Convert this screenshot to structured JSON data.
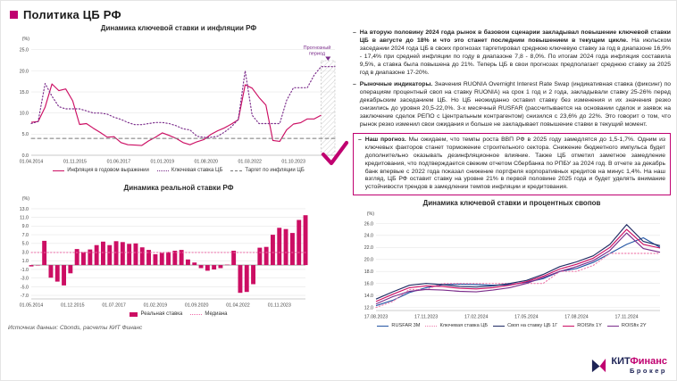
{
  "slide": {
    "title": "Политика ЦБ РФ",
    "accent_color": "#c00070",
    "navy_color": "#1e2456"
  },
  "ui": {
    "bullet_dash": "–"
  },
  "bullets": [
    {
      "lead": "На вторую половину 2024 года рынок в базовом сценарии закладывал повышение ключевой ставки ЦБ в августе до 18% и что это станет последним повышением в текущем цикле.",
      "text": "На июльском заседании 2024 года ЦБ в своих прогнозах таргетировал среднюю ключевую ставку за год в диапазоне 16,9% - 17,4% при средней инфляции по году в диапазоне 7,8 - 8,0%. По итогам 2024 года инфляция составила 9,5%, а ставка была повышена до 21%. Теперь ЦБ в свои прогнозах предполагает среднюю ставку за 2025 год в диапазоне 17-20%."
    },
    {
      "lead": "Рыночные индикаторы.",
      "text": "Значения RUONIA Overnight Interest Rate Swap (индикативная ставка (фиксинг) по операциям процентный своп на ставку RUONIA) на срок 1 год и 2 года, закладывали ставку 25-26% перед декабрьским заседанием ЦБ. Но ЦБ неожиданно оставил ставку без изменения и их значения резко снизились до уровня 20,5-22,0%. 3-х месячный RUSFAR (рассчитывается на основании сделок и заявок на заключение сделок РЕПО с Центральным контрагентом) снизился с 23,6% до 22%. Это говорит о том, что рынок резко изменил свои ожидания и больше не закладывает повышение ставки в текущий момент."
    },
    {
      "lead": "Наш прогноз.",
      "text": "Мы ожидаем, что темпы роста ВВП РФ в 2025 году замедлятся до 1,5-1,7%. Одним из ключевых факторов станет торможение строительного сектора. Снижение бюджетного импульса будет дополнительно оказывать дезинфляционное влияние. Также ЦБ отметил заметное замедление кредитования, что подтверждается свежим отчетом Сбербанка по РПБУ за 2024 год. В отчете за декабрь банк впервые с 2022 года показал снижение портфеля корпоративных кредитов на минус 1,4%. На наш взгляд, ЦБ РФ оставит ставку на уровне 21% в первой половине 2025 года и будет уделять внимание устойчивости трендов в замедлении темпов инфляции и кредитования."
    }
  ],
  "source_note": "Источник данных: Cbonds, расчеты КИТ Финанс",
  "logo": {
    "part1": "КИТ",
    "part2": "Финанс",
    "part3": "Брокер"
  },
  "chart_data": [
    {
      "type": "line",
      "title": "Динамика ключевой ставки и инфляции РФ",
      "ylabel": "(%)",
      "ylim": [
        0,
        26
      ],
      "yticks": [
        0,
        5,
        10,
        15,
        20,
        25
      ],
      "grid": true,
      "legend_position": "bottom",
      "xticklabels": [
        "01.04.2014",
        "01.11.2015",
        "01.06.2017",
        "01.01.2019",
        "01.08.2020",
        "01.03.2022",
        "01.10.2023"
      ],
      "xtick_pos": [
        0,
        6.33,
        12.67,
        19,
        25.33,
        31.67,
        38
      ],
      "x_note": "quarterly points from 2014-Q2 to 2025-Q2",
      "forecast": {
        "label": "Прогнозный период",
        "start_index": 42
      },
      "series": [
        {
          "name": "Инфляция в годовом выражении",
          "color": "#cc0e63",
          "style": "solid",
          "values": [
            7.8,
            8.0,
            11.4,
            16.9,
            15.3,
            15.7,
            12.9,
            7.3,
            7.5,
            6.4,
            5.4,
            4.3,
            4.4,
            3.0,
            2.5,
            2.4,
            2.3,
            3.4,
            4.3,
            5.3,
            4.7,
            4.0,
            3.0,
            2.5,
            3.2,
            3.7,
            4.9,
            5.8,
            6.5,
            7.4,
            8.4,
            16.7,
            15.9,
            13.7,
            11.9,
            3.5,
            3.3,
            6.0,
            7.4,
            7.7,
            8.6,
            8.6,
            9.5,
            null,
            null
          ]
        },
        {
          "name": "Ключевая ставка ЦБ",
          "color": "#7b2d8b",
          "style": "dotted",
          "values": [
            7.5,
            8.0,
            17.0,
            14.0,
            11.5,
            11.0,
            11.0,
            11.0,
            10.5,
            10.0,
            10.0,
            9.75,
            9.0,
            8.5,
            7.75,
            7.25,
            7.25,
            7.5,
            7.75,
            7.75,
            7.5,
            7.0,
            6.25,
            6.0,
            4.5,
            4.25,
            4.25,
            4.5,
            5.5,
            6.75,
            8.5,
            20.0,
            9.5,
            7.5,
            7.5,
            7.5,
            7.5,
            13.0,
            16.0,
            16.0,
            16.0,
            19.0,
            21.0,
            21.0,
            21.0
          ]
        },
        {
          "name": "Таргет по инфляции ЦБ",
          "color": "#777777",
          "style": "dashed",
          "const_value": 4.0
        }
      ]
    },
    {
      "type": "bar",
      "title": "Динамика реальной ставки РФ",
      "ylabel": "(%)",
      "ylim": [
        -7.8,
        13.8
      ],
      "yticks": [
        13,
        11,
        9,
        7,
        5,
        3,
        1,
        -1,
        -3,
        -5,
        -7
      ],
      "grid": true,
      "legend_position": "bottom",
      "xticklabels": [
        "01.05.2014",
        "01.12.2015",
        "01.07.2017",
        "01.02.2019",
        "01.09.2020",
        "01.04.2022",
        "01.11.2023"
      ],
      "xtick_pos": [
        0,
        6.33,
        12.67,
        19,
        25.33,
        31.67,
        38
      ],
      "x_note": "quarterly points from 2014-Q2 to 2024-Q4, real rate = key rate minus YoY inflation",
      "series": [
        {
          "name": "Реальная ставка",
          "type": "bar",
          "color": "#cc0e63",
          "values": [
            -0.3,
            0.0,
            5.6,
            -2.9,
            -3.8,
            -4.7,
            -1.9,
            3.7,
            3.0,
            3.6,
            4.6,
            5.4,
            4.6,
            5.5,
            5.3,
            4.9,
            5.0,
            4.1,
            3.5,
            2.5,
            2.8,
            3.0,
            3.3,
            3.5,
            1.3,
            0.6,
            -0.7,
            -1.3,
            -1.0,
            -0.7,
            0.1,
            3.3,
            -6.4,
            -6.2,
            -4.4,
            4.0,
            4.2,
            7.0,
            8.6,
            8.3,
            7.4,
            10.4,
            11.5
          ]
        },
        {
          "name": "Медиана",
          "color": "#f06daa",
          "style": "dotted",
          "const_value": 2.9
        }
      ]
    },
    {
      "type": "line",
      "title": "Динамика ключевой ставки и процентных свопов",
      "ylabel": "(%)",
      "ylim": [
        11.5,
        26.5
      ],
      "yticks": [
        12,
        14,
        16,
        18,
        20,
        22,
        24,
        26
      ],
      "grid": true,
      "legend_position": "bottom",
      "xticklabels": [
        "17.08.2023",
        "17.11.2023",
        "17.02.2024",
        "17.05.2024",
        "17.08.2024",
        "17.11.2024"
      ],
      "xtick_pos": [
        0,
        3,
        6,
        9,
        12,
        15
      ],
      "x_note": "monthly points from Aug-2023 to Jan-2025",
      "series": [
        {
          "name": "RUSFAR 3M",
          "color": "#2456a4",
          "style": "solid",
          "values": [
            12.3,
            13.2,
            14.5,
            15.3,
            15.8,
            15.9,
            15.8,
            15.7,
            15.8,
            16.2,
            16.8,
            18.0,
            18.5,
            19.5,
            21.0,
            22.5,
            23.6,
            22.0
          ]
        },
        {
          "name": "Ключевая ставка ЦБ",
          "color": "#ef7fae",
          "style": "dotted",
          "values": [
            12,
            13,
            15,
            15,
            16,
            16,
            16,
            16,
            16,
            16,
            16,
            18,
            18,
            19,
            21,
            21,
            21,
            21
          ]
        },
        {
          "name": "Своп на ставку ЦБ 1Г",
          "color": "#1f2a63",
          "style": "solid",
          "values": [
            13.4,
            14.6,
            15.7,
            16.0,
            15.8,
            15.5,
            15.4,
            15.6,
            16.0,
            16.5,
            17.5,
            18.8,
            19.6,
            20.6,
            22.5,
            25.8,
            23.0,
            22.3
          ]
        },
        {
          "name": "ROISfix 1Y",
          "color": "#cc0e63",
          "style": "solid",
          "values": [
            13.0,
            14.2,
            15.3,
            15.6,
            15.5,
            15.2,
            15.1,
            15.3,
            15.7,
            16.3,
            17.2,
            18.4,
            19.2,
            20.2,
            22.0,
            25.0,
            22.5,
            21.9
          ]
        },
        {
          "name": "ROISfix 2Y",
          "color": "#7b2d8b",
          "style": "solid",
          "values": [
            12.6,
            13.8,
            14.7,
            15.0,
            14.9,
            14.7,
            14.6,
            14.9,
            15.3,
            16.0,
            17.0,
            18.0,
            18.8,
            19.8,
            21.5,
            24.4,
            21.8,
            21.2
          ]
        }
      ]
    }
  ]
}
